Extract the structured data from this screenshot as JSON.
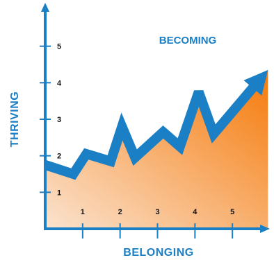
{
  "chart_data": {
    "type": "area",
    "title": "",
    "xlabel": "BELONGING",
    "ylabel": "THRIVING",
    "annotation": "BECOMING",
    "x_ticks": [
      "1",
      "2",
      "3",
      "4",
      "5"
    ],
    "y_ticks": [
      "1",
      "2",
      "3",
      "4",
      "5"
    ],
    "xlim": [
      0,
      6
    ],
    "ylim": [
      0,
      6
    ],
    "grid": false,
    "legend": "none",
    "series": [
      {
        "x": [
          0,
          0.75,
          1.1,
          1.75,
          2.05,
          2.4,
          3.15,
          3.6,
          4.1,
          4.5,
          5.95
        ],
        "y": [
          1.75,
          1.5,
          2.05,
          1.85,
          2.8,
          1.95,
          2.65,
          2.25,
          3.75,
          2.6,
          4.35
        ]
      }
    ],
    "colors": {
      "axis": "#1a7fc4",
      "line": "#1a7fc4",
      "fill_top": "#f57a0a",
      "fill_bottom": "#fbe3cf"
    }
  }
}
